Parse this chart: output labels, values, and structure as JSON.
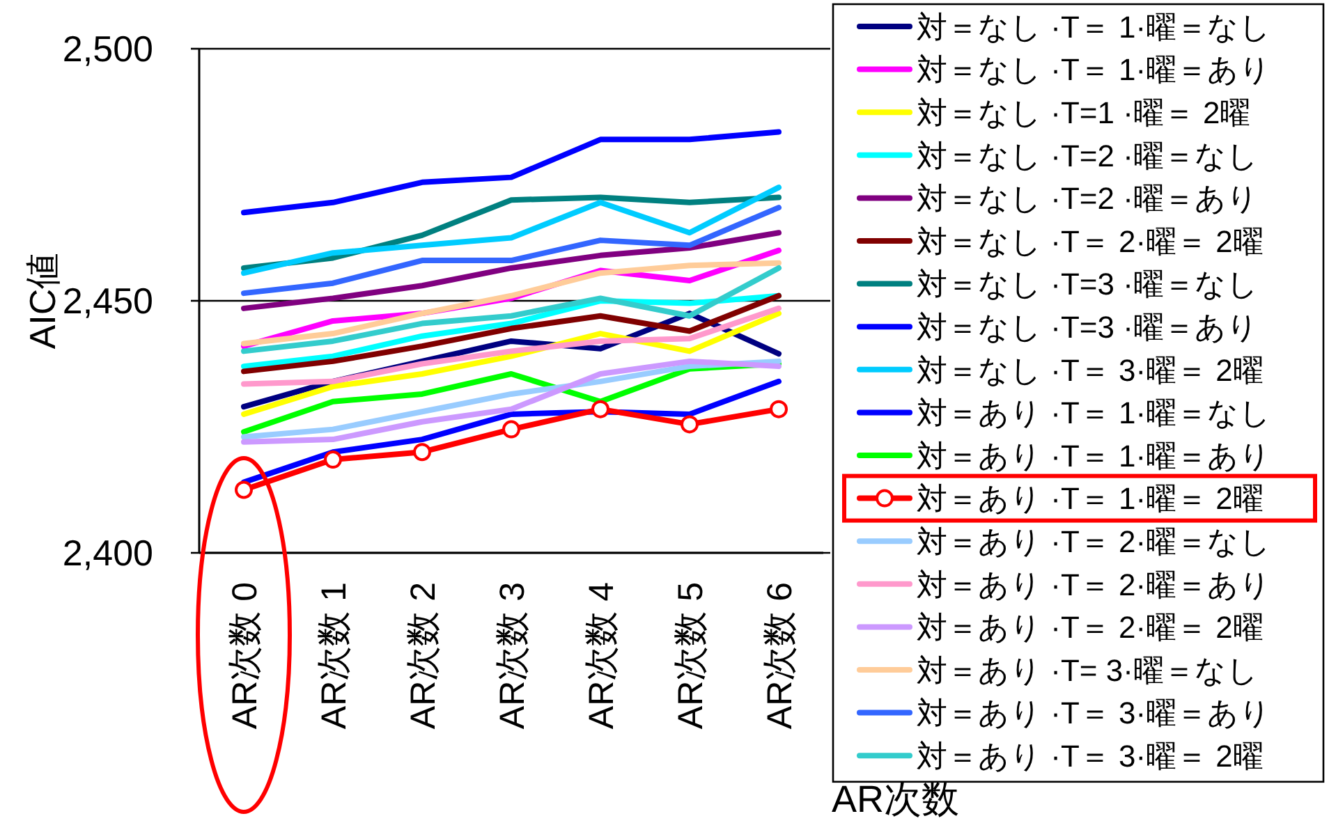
{
  "chart_data": {
    "type": "line",
    "ylabel": "AIC値",
    "xlabel": "AR次数",
    "categories": [
      "AR次数 0",
      "AR次数 1",
      "AR次数 2",
      "AR次数 3",
      "AR次数 4",
      "AR次数 5",
      "AR次数 6"
    ],
    "ylim": [
      2400,
      2500
    ],
    "yticks": [
      {
        "value": 2400,
        "label": "2,400"
      },
      {
        "value": 2450,
        "label": "2,450"
      },
      {
        "value": 2500,
        "label": "2,500"
      }
    ],
    "grid": "y",
    "legend": "right",
    "series": [
      {
        "name": "対＝なし ·T＝ 1·曜＝なし",
        "color": "#000080",
        "values": [
          2429,
          2434,
          2438,
          2442,
          2440.5,
          2447.5,
          2439.5
        ]
      },
      {
        "name": "対＝なし ·T＝ 1·曜＝あり",
        "color": "#ff00ff",
        "values": [
          2441,
          2446,
          2447.5,
          2450.5,
          2456,
          2454,
          2460
        ]
      },
      {
        "name": "対＝なし ·T=1 ·曜＝ 2曜",
        "color": "#ffff00",
        "values": [
          2427.5,
          2433,
          2435.5,
          2439,
          2443.5,
          2440,
          2447.5
        ]
      },
      {
        "name": "対＝なし ·T=2 ·曜＝なし",
        "color": "#00ffff",
        "values": [
          2437,
          2439,
          2443,
          2445.5,
          2450,
          2449.5,
          2451
        ]
      },
      {
        "name": "対＝なし ·T=2 ·曜＝あり",
        "color": "#800080",
        "values": [
          2448.5,
          2450.5,
          2453,
          2456.5,
          2459,
          2460.5,
          2463.5
        ]
      },
      {
        "name": "対＝なし ·T＝ 2·曜＝ 2曜",
        "color": "#800000",
        "values": [
          2436,
          2438,
          2441,
          2444.5,
          2447,
          2444,
          2451
        ]
      },
      {
        "name": "対＝なし ·T=3 ·曜＝なし",
        "color": "#008080",
        "values": [
          2456.5,
          2458.5,
          2463,
          2470,
          2470.5,
          2469.5,
          2470.5
        ]
      },
      {
        "name": "対＝なし ·T=3 ·曜＝あり",
        "color": "#0000ff",
        "values": [
          2467.5,
          2469.5,
          2473.5,
          2474.5,
          2482,
          2482,
          2483.5
        ]
      },
      {
        "name": "対＝なし ·T＝ 3·曜＝ 2曜",
        "color": "#00ccff",
        "values": [
          2455.5,
          2459.5,
          2461,
          2462.5,
          2469.5,
          2463.5,
          2472.5
        ]
      },
      {
        "name": "対＝あり ·T＝ 1·曜＝なし",
        "color": "#0000ff",
        "values": [
          2414,
          2420,
          2422.5,
          2427.5,
          2428,
          2427.5,
          2434
        ]
      },
      {
        "name": "対＝あり ·T＝ 1·曜＝あり",
        "color": "#00ff00",
        "values": [
          2424,
          2430,
          2431.5,
          2435.5,
          2430,
          2436.5,
          2437.5
        ]
      },
      {
        "name": "対＝あり ·T＝ 1·曜＝ 2曜",
        "color": "#ff0000",
        "marker": "circle",
        "values": [
          2412.5,
          2418.5,
          2420,
          2424.5,
          2428.5,
          2425.5,
          2428.5
        ]
      },
      {
        "name": "対＝あり ·T＝ 2·曜＝なし",
        "color": "#99ccff",
        "values": [
          2423,
          2424.5,
          2428,
          2431.5,
          2434,
          2437,
          2438
        ]
      },
      {
        "name": "対＝あり ·T＝ 2·曜＝あり",
        "color": "#ff99cc",
        "values": [
          2433.5,
          2434,
          2437.5,
          2440,
          2442,
          2442.5,
          2448.5
        ]
      },
      {
        "name": "対＝あり ·T＝ 2·曜＝ 2曜",
        "color": "#cc99ff",
        "values": [
          2422,
          2422.5,
          2426,
          2428.5,
          2435.5,
          2438,
          2437
        ]
      },
      {
        "name": "対＝あり ·T= 3·曜＝なし",
        "color": "#ffcc99",
        "values": [
          2441.5,
          2443.5,
          2447.5,
          2451,
          2455.5,
          2457,
          2457.5
        ]
      },
      {
        "name": "対＝あり ·T＝ 3·曜＝あり",
        "color": "#3366ff",
        "values": [
          2451.5,
          2453.5,
          2458,
          2458,
          2462,
          2461,
          2468.5
        ]
      },
      {
        "name": "対＝あり ·T＝ 3·曜＝ 2曜",
        "color": "#33cccc",
        "values": [
          2440,
          2442,
          2445.5,
          2447,
          2450.5,
          2447,
          2456.5
        ]
      }
    ]
  }
}
